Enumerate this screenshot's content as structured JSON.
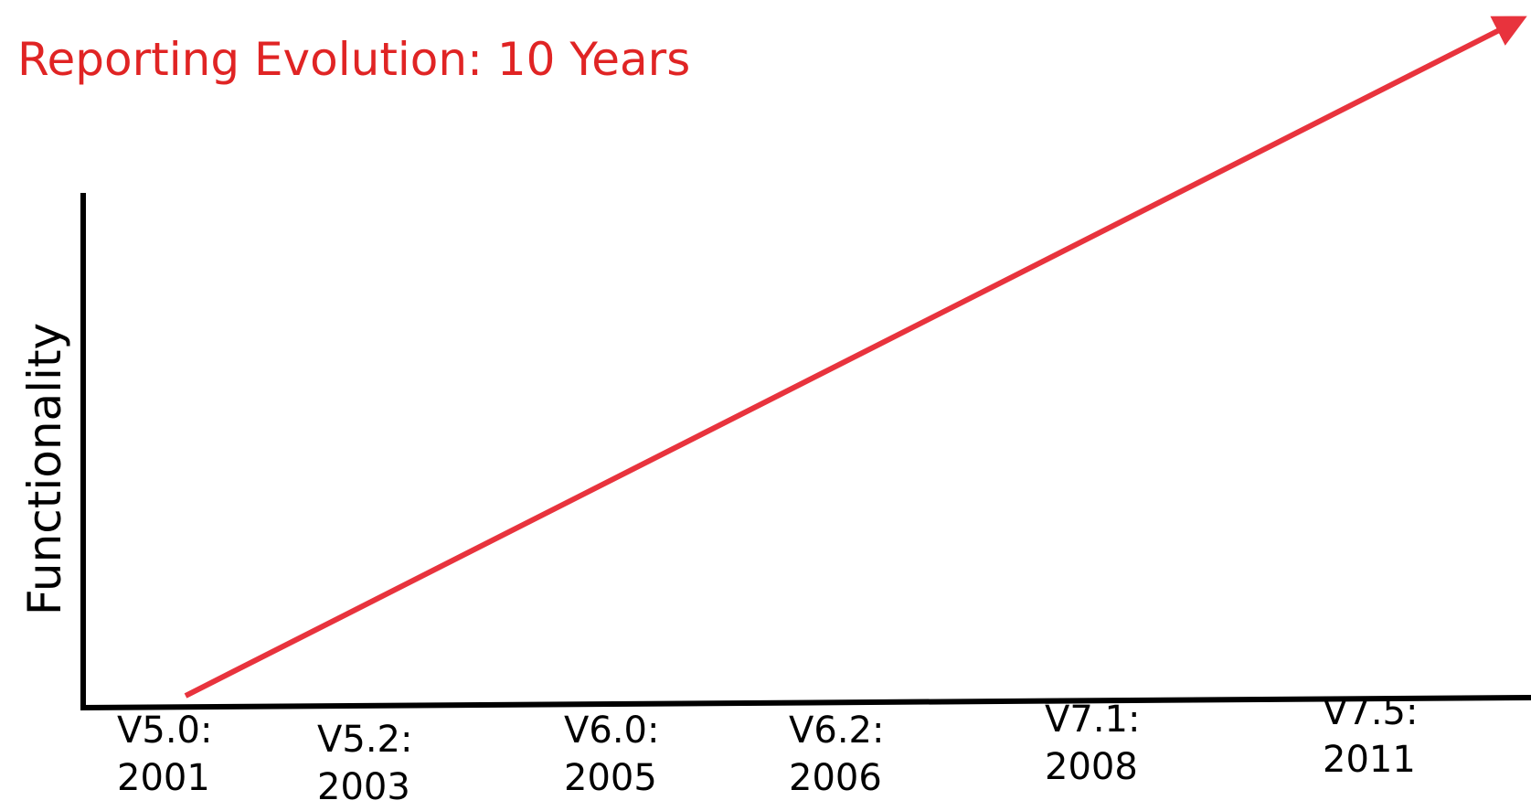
{
  "title": "Reporting Evolution:  10 Years",
  "y_axis_label": "Functionality",
  "milestones": [
    {
      "version": "V5.0:",
      "year": "2001"
    },
    {
      "version": "V5.2:",
      "year": "2003"
    },
    {
      "version": "V6.0:",
      "year": "2005"
    },
    {
      "version": "V6.2:",
      "year": "2006"
    },
    {
      "version": "V7.1:",
      "year": "2008"
    },
    {
      "version": "V7.5:",
      "year": "2011"
    }
  ]
}
